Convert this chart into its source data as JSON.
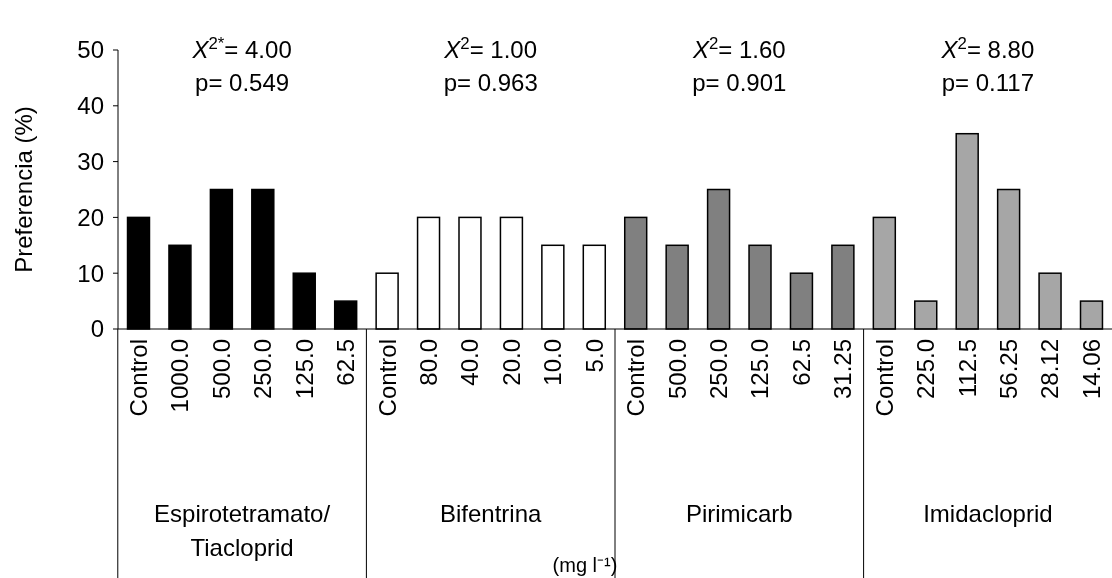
{
  "chart_data": {
    "type": "bar",
    "ylabel": "Preferencia (%)",
    "categories": [
      "Control",
      "1000.0",
      "500.0",
      "250.0",
      "125.0",
      "62.5",
      "Control",
      "80.0",
      "40.0",
      "20.0",
      "10.0",
      "5.0",
      "Control",
      "500.0",
      "250.0",
      "125.0",
      "62.5",
      "31.25",
      "Control",
      "225.0",
      "112.5",
      "56.25",
      "28.12",
      "14.06"
    ],
    "series": [
      {
        "color": "#000000",
        "values": [
          20,
          15,
          25,
          25,
          10,
          5,
          null,
          null,
          null,
          null,
          null,
          null,
          null,
          null,
          null,
          null,
          null,
          null,
          null,
          null,
          null,
          null,
          null,
          null
        ]
      },
      {
        "color": "#ffffff",
        "values": [
          null,
          null,
          null,
          null,
          null,
          null,
          10,
          20,
          20,
          20,
          15,
          15,
          null,
          null,
          null,
          null,
          null,
          null,
          null,
          null,
          null,
          null,
          null,
          null
        ]
      },
      {
        "color": "#808080",
        "values": [
          null,
          null,
          null,
          null,
          null,
          null,
          null,
          null,
          null,
          null,
          null,
          null,
          20,
          15,
          25,
          15,
          10,
          15,
          null,
          null,
          null,
          null,
          null,
          null
        ]
      },
      {
        "color": "#a6a6a6",
        "values": [
          null,
          null,
          null,
          null,
          null,
          null,
          null,
          null,
          null,
          null,
          null,
          null,
          null,
          null,
          null,
          null,
          null,
          null,
          20,
          5,
          35,
          25,
          10,
          5
        ]
      }
    ],
    "annotations": [
      "X$^{2*}$= 4.00",
      "p= 0.549",
      "X$^{2}$= 1.00",
      "p= 0.963",
      "X$^{2}$= 1.60",
      "p= 0.901",
      "X$^{2}$= 8.80",
      "p= 0.117",
      "Espirotetramato/ Tiacloprid",
      "Bifentrina",
      "Pirimicarb",
      "Imidacloprid",
      "(mg l⁻¹)"
    ],
    "ylim": [
      0,
      50
    ],
    "yticks": [
      0,
      10,
      20,
      30,
      40,
      50
    ],
    "grid": false
  }
}
